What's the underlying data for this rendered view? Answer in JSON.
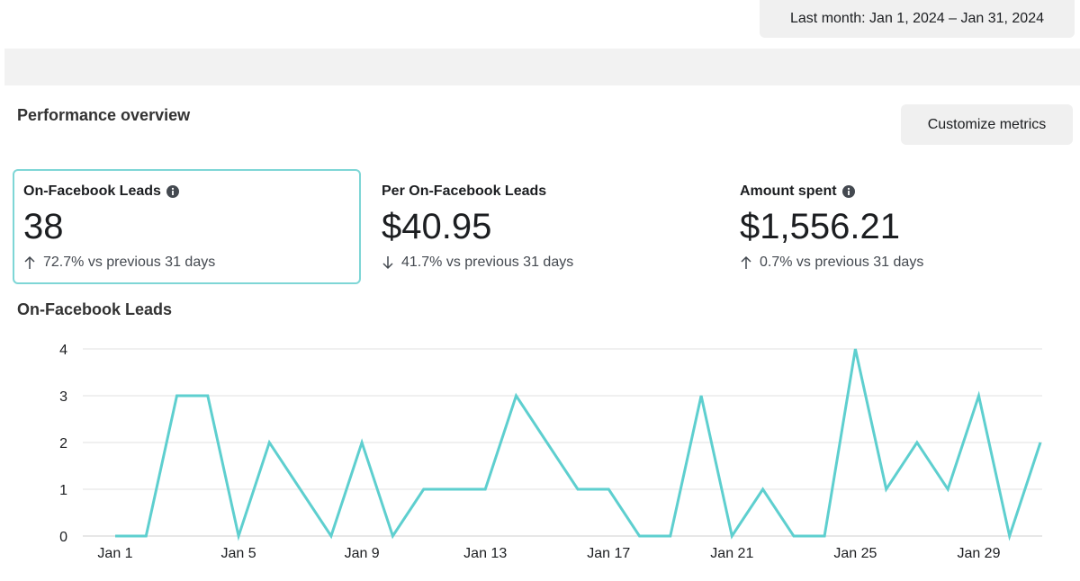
{
  "header": {
    "date_range": "Last month: Jan 1, 2024 – Jan 31, 2024"
  },
  "overview": {
    "title": "Performance overview",
    "customize_label": "Customize metrics"
  },
  "metrics": [
    {
      "label": "On-Facebook Leads",
      "value": "38",
      "change": "72.7% vs previous 31 days",
      "direction": "up"
    },
    {
      "label": "Per On-Facebook Leads",
      "value": "$40.95",
      "change": "41.7% vs previous 31 days",
      "direction": "down"
    },
    {
      "label": "Amount spent",
      "value": "$1,556.21",
      "change": "0.7% vs previous 31 days",
      "direction": "up"
    }
  ],
  "colors": {
    "line": "#5ecfcf",
    "selected_border": "#7ed6d6",
    "grid": "#e0e0e0"
  },
  "chart_data": {
    "type": "line",
    "title": "On-Facebook Leads",
    "xlabel": "",
    "ylabel": "",
    "x": [
      "Jan 1",
      "Jan 2",
      "Jan 3",
      "Jan 4",
      "Jan 5",
      "Jan 6",
      "Jan 7",
      "Jan 8",
      "Jan 9",
      "Jan 10",
      "Jan 11",
      "Jan 12",
      "Jan 13",
      "Jan 14",
      "Jan 15",
      "Jan 16",
      "Jan 17",
      "Jan 18",
      "Jan 19",
      "Jan 20",
      "Jan 21",
      "Jan 22",
      "Jan 23",
      "Jan 24",
      "Jan 25",
      "Jan 26",
      "Jan 27",
      "Jan 28",
      "Jan 29",
      "Jan 30",
      "Jan 31"
    ],
    "values": [
      0,
      0,
      3,
      3,
      0,
      2,
      1,
      0,
      2,
      0,
      1,
      1,
      1,
      3,
      2,
      1,
      1,
      0,
      0,
      3,
      0,
      1,
      0,
      0,
      4,
      1,
      2,
      1,
      3,
      0,
      2
    ],
    "x_tick_labels": [
      "Jan 1",
      "Jan 5",
      "Jan 9",
      "Jan 13",
      "Jan 17",
      "Jan 21",
      "Jan 25",
      "Jan 29"
    ],
    "y_ticks": [
      "0",
      "1",
      "2",
      "3",
      "4"
    ],
    "ylim": [
      0,
      4
    ],
    "grid": true,
    "legend": "none"
  }
}
